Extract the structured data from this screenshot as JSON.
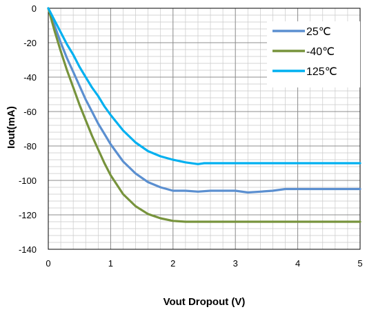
{
  "chart_data": {
    "type": "line",
    "xlabel": "Vout Dropout (V)",
    "ylabel": "Iout(mA)",
    "xlim": [
      0,
      5
    ],
    "ylim": [
      -140,
      0
    ],
    "xticks": [
      "0",
      "1",
      "2",
      "3",
      "4",
      "5"
    ],
    "yticks": [
      "0",
      "-20",
      "-40",
      "-60",
      "-80",
      "-100",
      "-120",
      "-140"
    ],
    "grid": true,
    "legend_position": "top-right",
    "series": [
      {
        "name": "25℃",
        "color": "#5B8FD0",
        "x": [
          0,
          0.1,
          0.2,
          0.3,
          0.4,
          0.5,
          0.6,
          0.7,
          0.8,
          0.9,
          1.0,
          1.2,
          1.4,
          1.6,
          1.8,
          2.0,
          2.2,
          2.4,
          2.6,
          2.8,
          3.0,
          3.2,
          3.4,
          3.6,
          3.8,
          4.0,
          4.2,
          4.4,
          4.6,
          4.8,
          5.0
        ],
        "y": [
          0,
          -10,
          -20,
          -29,
          -37,
          -45,
          -53,
          -60,
          -67,
          -73,
          -79,
          -89,
          -96,
          -101,
          -104,
          -106,
          -106,
          -106.5,
          -106,
          -106,
          -106,
          -107,
          -106.5,
          -106,
          -105,
          -105,
          -105,
          -105,
          -105,
          -105,
          -105
        ]
      },
      {
        "name": "-40℃",
        "color": "#77933C",
        "x": [
          0,
          0.1,
          0.2,
          0.3,
          0.4,
          0.5,
          0.6,
          0.7,
          0.8,
          0.9,
          1.0,
          1.2,
          1.4,
          1.6,
          1.8,
          2.0,
          2.2,
          2.4,
          2.6,
          2.8,
          3.0,
          3.5,
          4.0,
          4.5,
          5.0
        ],
        "y": [
          0,
          -13,
          -25,
          -36,
          -46,
          -56,
          -65,
          -74,
          -82,
          -90,
          -97,
          -108,
          -115,
          -119.5,
          -122,
          -123.5,
          -124,
          -124,
          -124,
          -124,
          -124,
          -124,
          -124,
          -124,
          -124
        ]
      },
      {
        "name": "125℃",
        "color": "#00B0F0",
        "x": [
          0,
          0.1,
          0.2,
          0.3,
          0.4,
          0.5,
          0.6,
          0.7,
          0.8,
          0.9,
          1.0,
          1.2,
          1.4,
          1.6,
          1.8,
          2.0,
          2.2,
          2.4,
          2.5,
          2.6,
          2.8,
          3.0,
          3.5,
          4.0,
          4.5,
          5.0
        ],
        "y": [
          0,
          -7,
          -14,
          -21,
          -27,
          -34,
          -40,
          -46,
          -51,
          -57,
          -62,
          -71,
          -78,
          -83,
          -86,
          -88,
          -89.5,
          -90.5,
          -90,
          -90,
          -90,
          -90,
          -90,
          -90,
          -90,
          -90
        ]
      }
    ]
  }
}
